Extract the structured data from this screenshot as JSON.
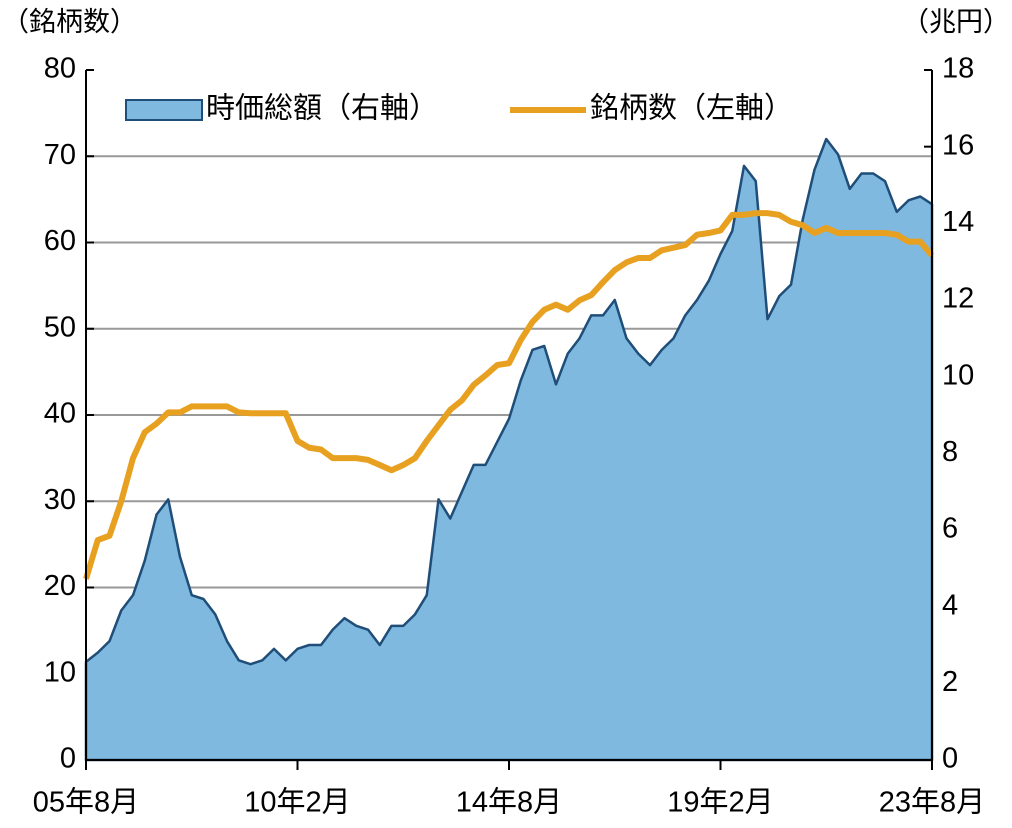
{
  "chart_data": {
    "type": "area_line",
    "y_label": "（銘柄数）",
    "y2_label": "（兆円）",
    "categories": [
      "05年8月",
      null,
      null,
      null,
      null,
      null,
      null,
      null,
      null,
      null,
      null,
      null,
      null,
      null,
      null,
      null,
      null,
      null,
      "10年2月",
      null,
      null,
      null,
      null,
      null,
      null,
      null,
      null,
      null,
      null,
      null,
      null,
      null,
      null,
      null,
      null,
      null,
      "14年8月",
      null,
      null,
      null,
      null,
      null,
      null,
      null,
      null,
      null,
      null,
      null,
      null,
      null,
      null,
      null,
      null,
      null,
      "19年2月",
      null,
      null,
      null,
      null,
      null,
      null,
      null,
      null,
      null,
      null,
      null,
      null,
      null,
      null,
      null,
      null,
      null,
      "23年8月"
    ],
    "series": [
      {
        "name": "時価総額（右軸）",
        "type": "area",
        "axis": "y2",
        "color": "#7fb9e0",
        "edge_color": "#1f4e79",
        "values": [
          2.56,
          2.8,
          3.1,
          3.9,
          4.3,
          5.2,
          6.4,
          6.8,
          5.3,
          4.3,
          4.2,
          3.8,
          3.1,
          2.6,
          2.5,
          2.6,
          2.9,
          2.6,
          2.9,
          3.0,
          3.0,
          3.4,
          3.7,
          3.5,
          3.4,
          3.0,
          3.5,
          3.5,
          3.8,
          4.3,
          6.8,
          6.3,
          7.0,
          7.7,
          7.7,
          8.3,
          8.9,
          9.9,
          10.7,
          10.8,
          9.8,
          10.6,
          11.0,
          11.6,
          11.6,
          12.0,
          11.0,
          10.6,
          10.3,
          10.7,
          11.0,
          11.6,
          12.0,
          12.5,
          13.2,
          13.8,
          15.5,
          15.1,
          11.5,
          12.1,
          12.4,
          14.1,
          15.4,
          16.2,
          15.8,
          14.9,
          15.3,
          15.3,
          15.1,
          14.3,
          14.6,
          14.7,
          14.5
        ]
      },
      {
        "name": "銘柄数（左軸）",
        "type": "line",
        "axis": "y",
        "color": "#e8a020",
        "values": [
          21,
          25.5,
          26,
          30,
          35,
          38,
          39,
          40.3,
          40.3,
          41,
          41,
          41,
          41,
          40.3,
          40.2,
          40.2,
          40.2,
          40.2,
          37,
          36.2,
          36,
          35,
          35,
          35,
          34.8,
          34.2,
          33.6,
          34.2,
          35,
          37,
          38.8,
          40.6,
          41.7,
          43.5,
          44.6,
          45.8,
          46,
          48.7,
          50.8,
          52.2,
          52.8,
          52.2,
          53.3,
          53.9,
          55.4,
          56.8,
          57.7,
          58.2,
          58.2,
          59.1,
          59.4,
          59.7,
          60.9,
          61.1,
          61.4,
          63.2,
          63.2,
          63.4,
          63.4,
          63.2,
          62.4,
          62.0,
          61.1,
          61.7,
          61.1,
          61.1,
          61.1,
          61.1,
          61.1,
          60.9,
          60.1,
          60.1,
          58.5
        ]
      }
    ],
    "ylim": [
      0,
      80
    ],
    "yticks": [
      0,
      10,
      20,
      30,
      40,
      50,
      60,
      70,
      80
    ],
    "y2lim": [
      0,
      18
    ],
    "y2ticks": [
      0,
      2,
      4,
      6,
      8,
      10,
      12,
      14,
      16,
      18
    ],
    "grid": true,
    "legend": "top"
  }
}
